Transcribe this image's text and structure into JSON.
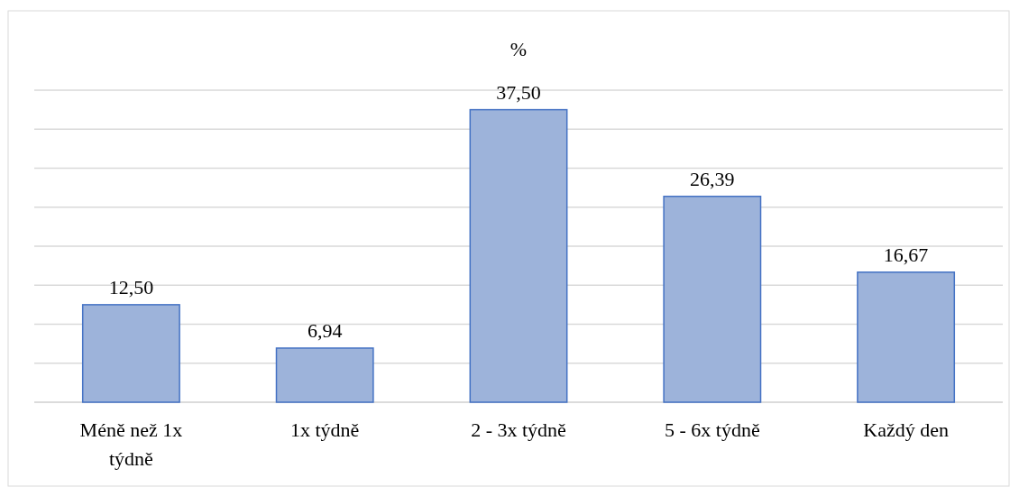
{
  "chart_data": {
    "type": "bar",
    "title": "%",
    "categories": [
      "Méně než 1x týdně",
      "1x týdně",
      "2 - 3x týdně",
      "5 - 6x týdně",
      "Každý den"
    ],
    "values": [
      12.5,
      6.94,
      37.5,
      26.39,
      16.67
    ],
    "value_labels": [
      "12,50",
      "6,94",
      "37,50",
      "26,39",
      "16,67"
    ],
    "color": "#9db3da",
    "ylim": [
      0,
      40
    ],
    "yticks": [
      {
        "value": 0,
        "label": null
      },
      {
        "value": 5,
        "label": null
      },
      {
        "value": 10,
        "label": null
      },
      {
        "value": 15,
        "label": null
      },
      {
        "value": 20,
        "label": null
      },
      {
        "value": 25,
        "label": null
      },
      {
        "value": 30,
        "label": null
      },
      {
        "value": 35,
        "label": null
      },
      {
        "value": 40,
        "label": null
      }
    ],
    "grid": "y",
    "tick_labels": "x"
  }
}
